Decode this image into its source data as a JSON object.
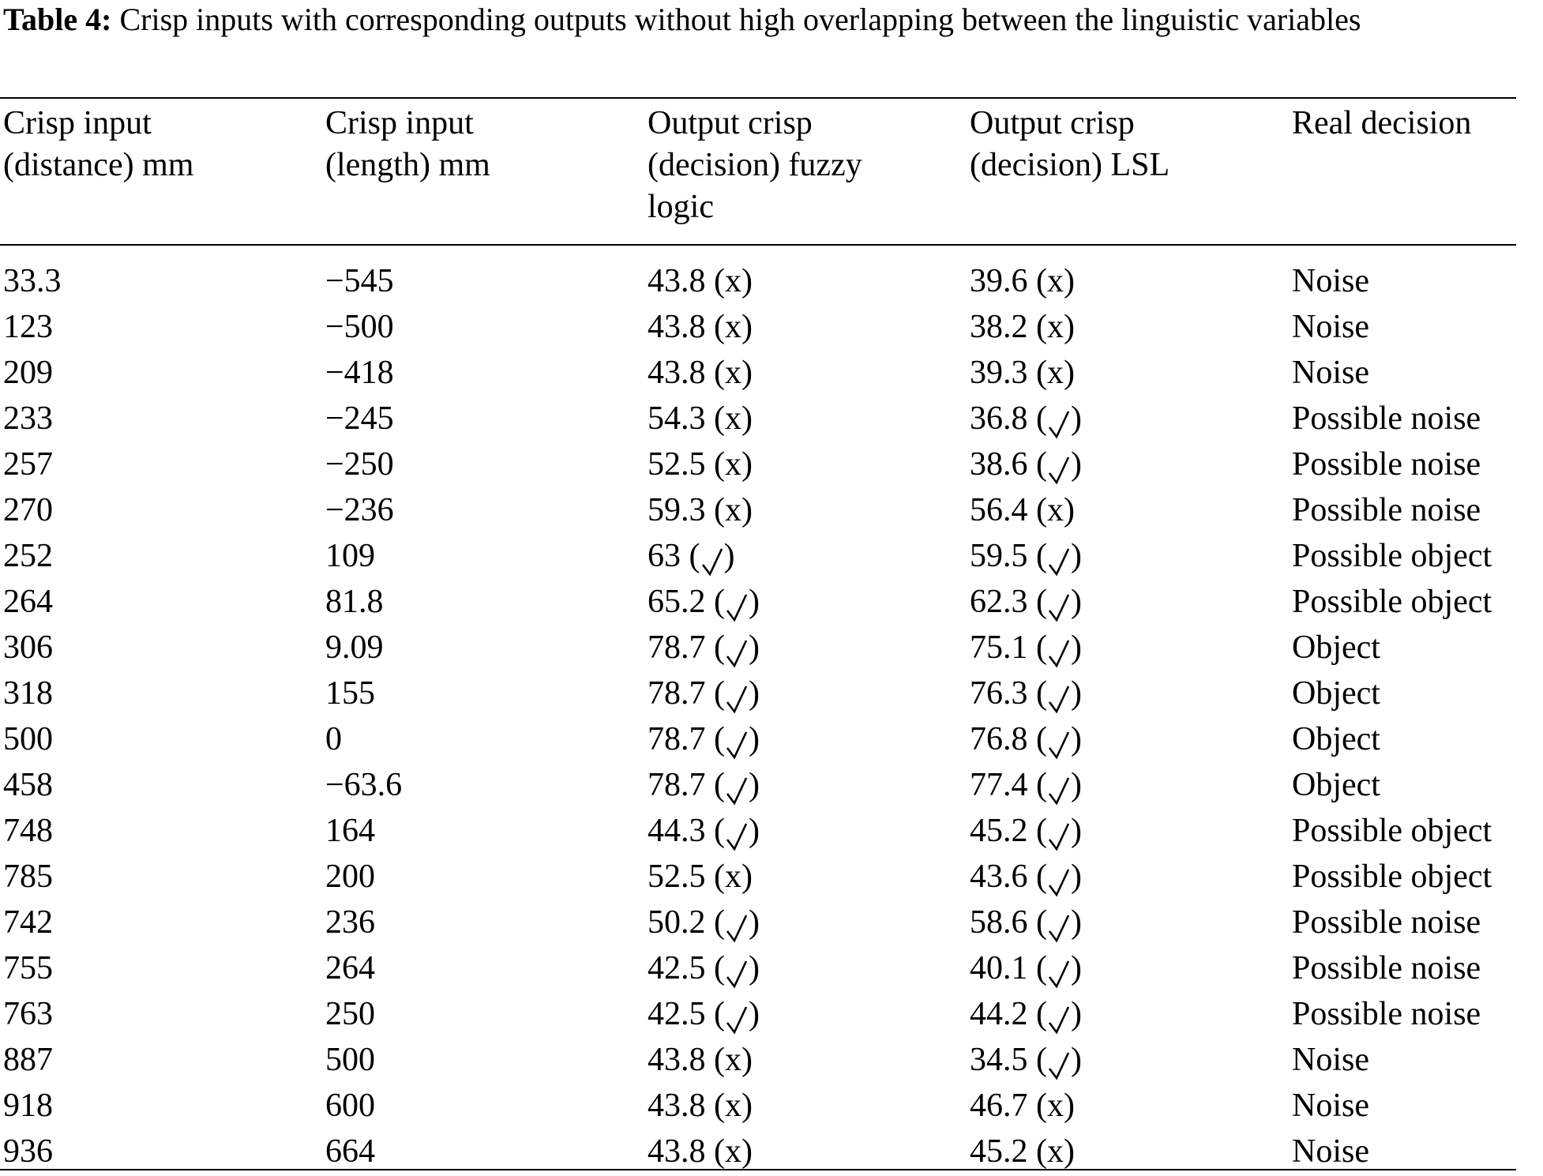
{
  "caption": {
    "label": "Table 4:",
    "text": " Crisp inputs with corresponding outputs without high overlapping between the linguistic variables"
  },
  "table": {
    "headers": [
      "Crisp input (distance) mm",
      "Crisp input (length) mm",
      "Output crisp (decision) fuzzy logic",
      "Output crisp (decision) LSL",
      "Real decision"
    ],
    "rows": [
      {
        "distance": "33.3",
        "length": "−545",
        "fuzzy_value": "43.8",
        "fuzzy_mark": "x",
        "lsl_value": "39.6",
        "lsl_mark": "x",
        "decision": "Noise"
      },
      {
        "distance": "123",
        "length": "−500",
        "fuzzy_value": "43.8",
        "fuzzy_mark": "x",
        "lsl_value": "38.2",
        "lsl_mark": "x",
        "decision": "Noise"
      },
      {
        "distance": "209",
        "length": "−418",
        "fuzzy_value": "43.8",
        "fuzzy_mark": "x",
        "lsl_value": "39.3",
        "lsl_mark": "x",
        "decision": "Noise"
      },
      {
        "distance": "233",
        "length": "−245",
        "fuzzy_value": "54.3",
        "fuzzy_mark": "x",
        "lsl_value": "36.8",
        "lsl_mark": "check",
        "decision": "Possible noise"
      },
      {
        "distance": "257",
        "length": "−250",
        "fuzzy_value": "52.5",
        "fuzzy_mark": "x",
        "lsl_value": "38.6",
        "lsl_mark": "check",
        "decision": "Possible noise"
      },
      {
        "distance": "270",
        "length": "−236",
        "fuzzy_value": "59.3",
        "fuzzy_mark": "x",
        "lsl_value": "56.4",
        "lsl_mark": "x",
        "decision": "Possible noise"
      },
      {
        "distance": "252",
        "length": "109",
        "fuzzy_value": "63",
        "fuzzy_mark": "check",
        "lsl_value": "59.5",
        "lsl_mark": "check",
        "decision": "Possible object"
      },
      {
        "distance": "264",
        "length": "81.8",
        "fuzzy_value": "65.2",
        "fuzzy_mark": "check",
        "lsl_value": "62.3",
        "lsl_mark": "check",
        "decision": "Possible object"
      },
      {
        "distance": "306",
        "length": "9.09",
        "fuzzy_value": "78.7",
        "fuzzy_mark": "check",
        "lsl_value": "75.1",
        "lsl_mark": "check",
        "decision": "Object"
      },
      {
        "distance": "318",
        "length": "155",
        "fuzzy_value": "78.7",
        "fuzzy_mark": "check",
        "lsl_value": "76.3",
        "lsl_mark": "check",
        "decision": "Object"
      },
      {
        "distance": "500",
        "length": "0",
        "fuzzy_value": "78.7",
        "fuzzy_mark": "check",
        "lsl_value": "76.8",
        "lsl_mark": "check",
        "decision": "Object"
      },
      {
        "distance": "458",
        "length": "−63.6",
        "fuzzy_value": "78.7",
        "fuzzy_mark": "check",
        "lsl_value": "77.4",
        "lsl_mark": "check",
        "decision": "Object"
      },
      {
        "distance": "748",
        "length": "164",
        "fuzzy_value": "44.3",
        "fuzzy_mark": "check",
        "lsl_value": "45.2",
        "lsl_mark": "check",
        "decision": "Possible object"
      },
      {
        "distance": "785",
        "length": "200",
        "fuzzy_value": "52.5",
        "fuzzy_mark": "x",
        "lsl_value": "43.6",
        "lsl_mark": "check",
        "decision": "Possible object"
      },
      {
        "distance": "742",
        "length": "236",
        "fuzzy_value": "50.2",
        "fuzzy_mark": "check",
        "lsl_value": "58.6",
        "lsl_mark": "check",
        "decision": "Possible noise"
      },
      {
        "distance": "755",
        "length": "264",
        "fuzzy_value": "42.5",
        "fuzzy_mark": "check",
        "lsl_value": "40.1",
        "lsl_mark": "check",
        "decision": "Possible noise"
      },
      {
        "distance": "763",
        "length": "250",
        "fuzzy_value": "42.5",
        "fuzzy_mark": "check",
        "lsl_value": "44.2",
        "lsl_mark": "check",
        "decision": "Possible noise"
      },
      {
        "distance": "887",
        "length": "500",
        "fuzzy_value": "43.8",
        "fuzzy_mark": "x",
        "lsl_value": "34.5",
        "lsl_mark": "check",
        "decision": "Noise"
      },
      {
        "distance": "918",
        "length": "600",
        "fuzzy_value": "43.8",
        "fuzzy_mark": "x",
        "lsl_value": "46.7",
        "lsl_mark": "x",
        "decision": "Noise"
      },
      {
        "distance": "936",
        "length": "664",
        "fuzzy_value": "43.8",
        "fuzzy_mark": "x",
        "lsl_value": "45.2",
        "lsl_mark": "x",
        "decision": "Noise"
      }
    ]
  }
}
